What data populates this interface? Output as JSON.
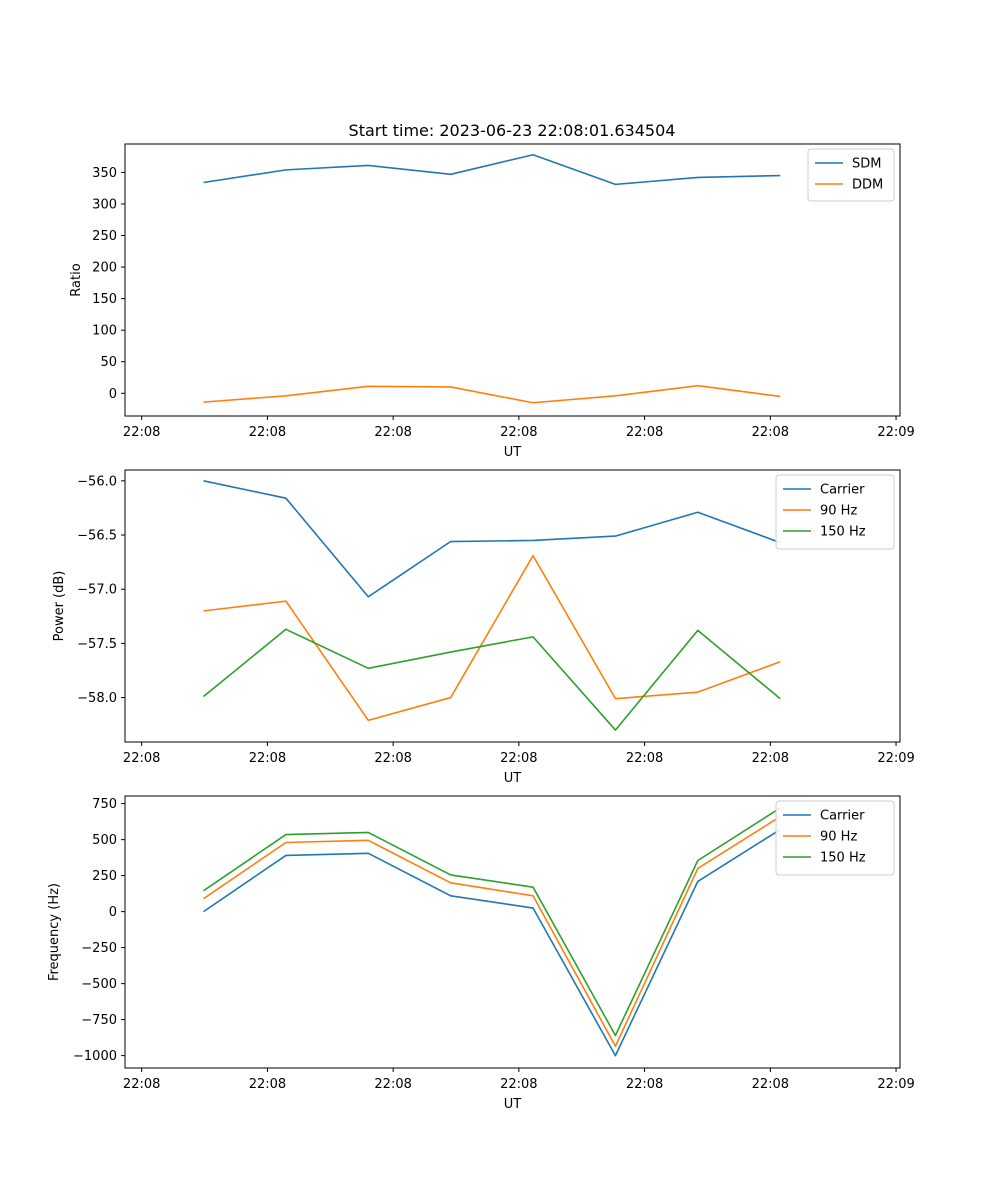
{
  "figure_title": "Start time: 2023-06-23 22:08:01.634504",
  "chart_data": [
    {
      "type": "line",
      "title": "Start time: 2023-06-23 22:08:01.634504",
      "xlabel": "UT",
      "ylabel": "Ratio",
      "x_tick_labels": [
        "22:08",
        "22:08",
        "22:08",
        "22:08",
        "22:08",
        "22:08",
        "22:09"
      ],
      "y_ticks": [
        0,
        50,
        100,
        150,
        200,
        250,
        300,
        350
      ],
      "ylim": [
        -36,
        395
      ],
      "grid": false,
      "legend_position": "top-right",
      "series": [
        {
          "name": "SDM",
          "color": "#1f77b4",
          "values": [
            334,
            354,
            361,
            347,
            378,
            331,
            342,
            345
          ]
        },
        {
          "name": "DDM",
          "color": "#ff7f0e",
          "values": [
            -14,
            -4,
            11,
            10,
            -15,
            -4,
            12,
            -5
          ]
        }
      ]
    },
    {
      "type": "line",
      "title": "",
      "xlabel": "UT",
      "ylabel": "Power (dB)",
      "x_tick_labels": [
        "22:08",
        "22:08",
        "22:08",
        "22:08",
        "22:08",
        "22:08",
        "22:09"
      ],
      "y_ticks": [
        -56.0,
        -56.5,
        -57.0,
        -57.5,
        -58.0
      ],
      "y_tick_labels": [
        "−56.0",
        "−56.5",
        "−57.0",
        "−57.5",
        "−58.0"
      ],
      "ylim": [
        -58.41,
        -55.9
      ],
      "grid": false,
      "legend_position": "top-right",
      "series": [
        {
          "name": "Carrier",
          "color": "#1f77b4",
          "values": [
            -56.0,
            -56.16,
            -57.07,
            -56.56,
            -56.55,
            -56.51,
            -56.29,
            -56.57
          ]
        },
        {
          "name": "90 Hz",
          "color": "#ff7f0e",
          "values": [
            -57.2,
            -57.11,
            -58.21,
            -58.0,
            -56.69,
            -58.01,
            -57.95,
            -57.67
          ]
        },
        {
          "name": "150 Hz",
          "color": "#2ca02c",
          "values": [
            -57.99,
            -57.37,
            -57.73,
            -57.58,
            -57.44,
            -58.3,
            -57.38,
            -58.01
          ]
        }
      ]
    },
    {
      "type": "line",
      "title": "",
      "xlabel": "UT",
      "ylabel": "Frequency (Hz)",
      "x_tick_labels": [
        "22:08",
        "22:08",
        "22:08",
        "22:08",
        "22:08",
        "22:08",
        "22:09"
      ],
      "y_ticks": [
        750,
        500,
        250,
        0,
        -250,
        -500,
        -750,
        -1000
      ],
      "y_tick_labels": [
        "750",
        "500",
        "250",
        "0",
        "−250",
        "−500",
        "−750",
        "−1000"
      ],
      "ylim": [
        -1086,
        803
      ],
      "grid": false,
      "legend_position": "top-right",
      "series": [
        {
          "name": "Carrier",
          "color": "#1f77b4",
          "values": [
            0,
            390,
            405,
            110,
            25,
            -1000,
            210,
            570
          ]
        },
        {
          "name": "90 Hz",
          "color": "#ff7f0e",
          "values": [
            90,
            480,
            495,
            200,
            110,
            -935,
            300,
            660
          ]
        },
        {
          "name": "150 Hz",
          "color": "#2ca02c",
          "values": [
            145,
            535,
            550,
            255,
            170,
            -860,
            355,
            720
          ]
        }
      ]
    }
  ]
}
